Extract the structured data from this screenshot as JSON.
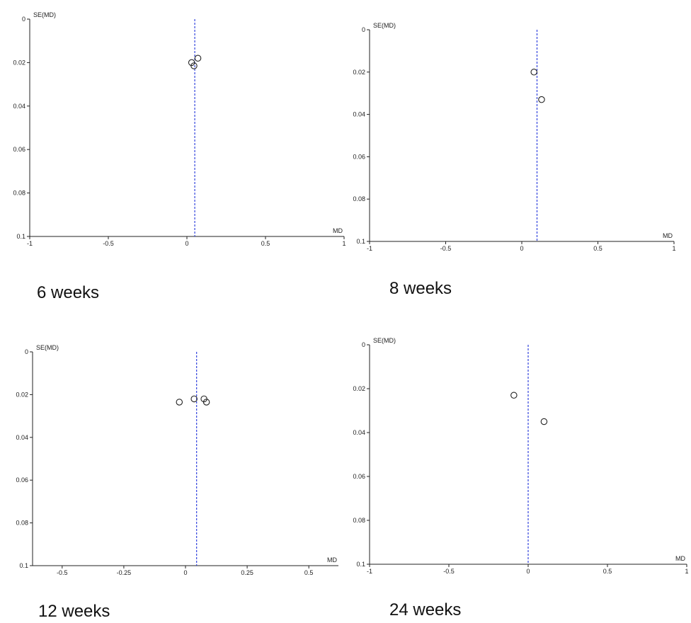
{
  "chart_data": [
    {
      "type": "scatter",
      "caption": "6 weeks",
      "xlabel": "MD",
      "ylabel": "SE(MD)",
      "xlim": [
        -1,
        1
      ],
      "ylim": [
        0,
        0.1
      ],
      "y_reversed": true,
      "xticks": [
        -1,
        -0.5,
        0,
        0.5,
        1
      ],
      "xtick_labels": [
        "-1",
        "-0.5",
        "0",
        "0.5",
        "1"
      ],
      "yticks": [
        0,
        0.02,
        0.04,
        0.06,
        0.08,
        0.1
      ],
      "ytick_labels": [
        "0",
        "0.02",
        "0.04",
        "0.06",
        "0.08",
        "0.1"
      ],
      "pooled_md": 0.05,
      "points": [
        {
          "x": 0.03,
          "y": 0.02
        },
        {
          "x": 0.045,
          "y": 0.0215
        },
        {
          "x": 0.07,
          "y": 0.018
        }
      ],
      "grid": false
    },
    {
      "type": "scatter",
      "caption": "8 weeks",
      "xlabel": "MD",
      "ylabel": "SE(MD)",
      "xlim": [
        -1,
        1
      ],
      "ylim": [
        0,
        0.1
      ],
      "y_reversed": true,
      "xticks": [
        -1,
        -0.5,
        0,
        0.5,
        1
      ],
      "xtick_labels": [
        "-1",
        "-0.5",
        "0",
        "0.5",
        "1"
      ],
      "yticks": [
        0,
        0.02,
        0.04,
        0.06,
        0.08,
        0.1
      ],
      "ytick_labels": [
        "0",
        "0.02",
        "0.04",
        "0.06",
        "0.08",
        "0.1"
      ],
      "pooled_md": 0.1,
      "points": [
        {
          "x": 0.08,
          "y": 0.02
        },
        {
          "x": 0.13,
          "y": 0.033
        }
      ],
      "grid": false
    },
    {
      "type": "scatter",
      "caption": "12 weeks",
      "xlabel": "MD",
      "ylabel": "SE(MD)",
      "xlim": [
        -0.62,
        0.62
      ],
      "ylim": [
        0,
        0.1
      ],
      "y_reversed": true,
      "xticks": [
        -0.5,
        -0.25,
        0,
        0.25,
        0.5
      ],
      "xtick_labels": [
        "-0.5",
        "-0.25",
        "0",
        "0.25",
        "0.5"
      ],
      "yticks": [
        0,
        0.02,
        0.04,
        0.06,
        0.08,
        0.1
      ],
      "ytick_labels": [
        "0",
        "0.02",
        "0.04",
        "0.06",
        "0.08",
        "0.1"
      ],
      "pooled_md": 0.045,
      "points": [
        {
          "x": -0.025,
          "y": 0.0235
        },
        {
          "x": 0.035,
          "y": 0.022
        },
        {
          "x": 0.075,
          "y": 0.022
        },
        {
          "x": 0.085,
          "y": 0.0235
        }
      ],
      "grid": false
    },
    {
      "type": "scatter",
      "caption": "24 weeks",
      "xlabel": "MD",
      "ylabel": "SE(MD)",
      "xlim": [
        -1,
        1
      ],
      "ylim": [
        0,
        0.1
      ],
      "y_reversed": true,
      "xticks": [
        -1,
        -0.5,
        0,
        0.5,
        1
      ],
      "xtick_labels": [
        "-1",
        "-0.5",
        "0",
        "0.5",
        "1"
      ],
      "yticks": [
        0,
        0.02,
        0.04,
        0.06,
        0.08,
        0.1
      ],
      "ytick_labels": [
        "0",
        "0.02",
        "0.04",
        "0.06",
        "0.08",
        "0.1"
      ],
      "pooled_md": 0.0,
      "points": [
        {
          "x": -0.09,
          "y": 0.023
        },
        {
          "x": 0.1,
          "y": 0.035
        }
      ],
      "grid": false
    }
  ]
}
